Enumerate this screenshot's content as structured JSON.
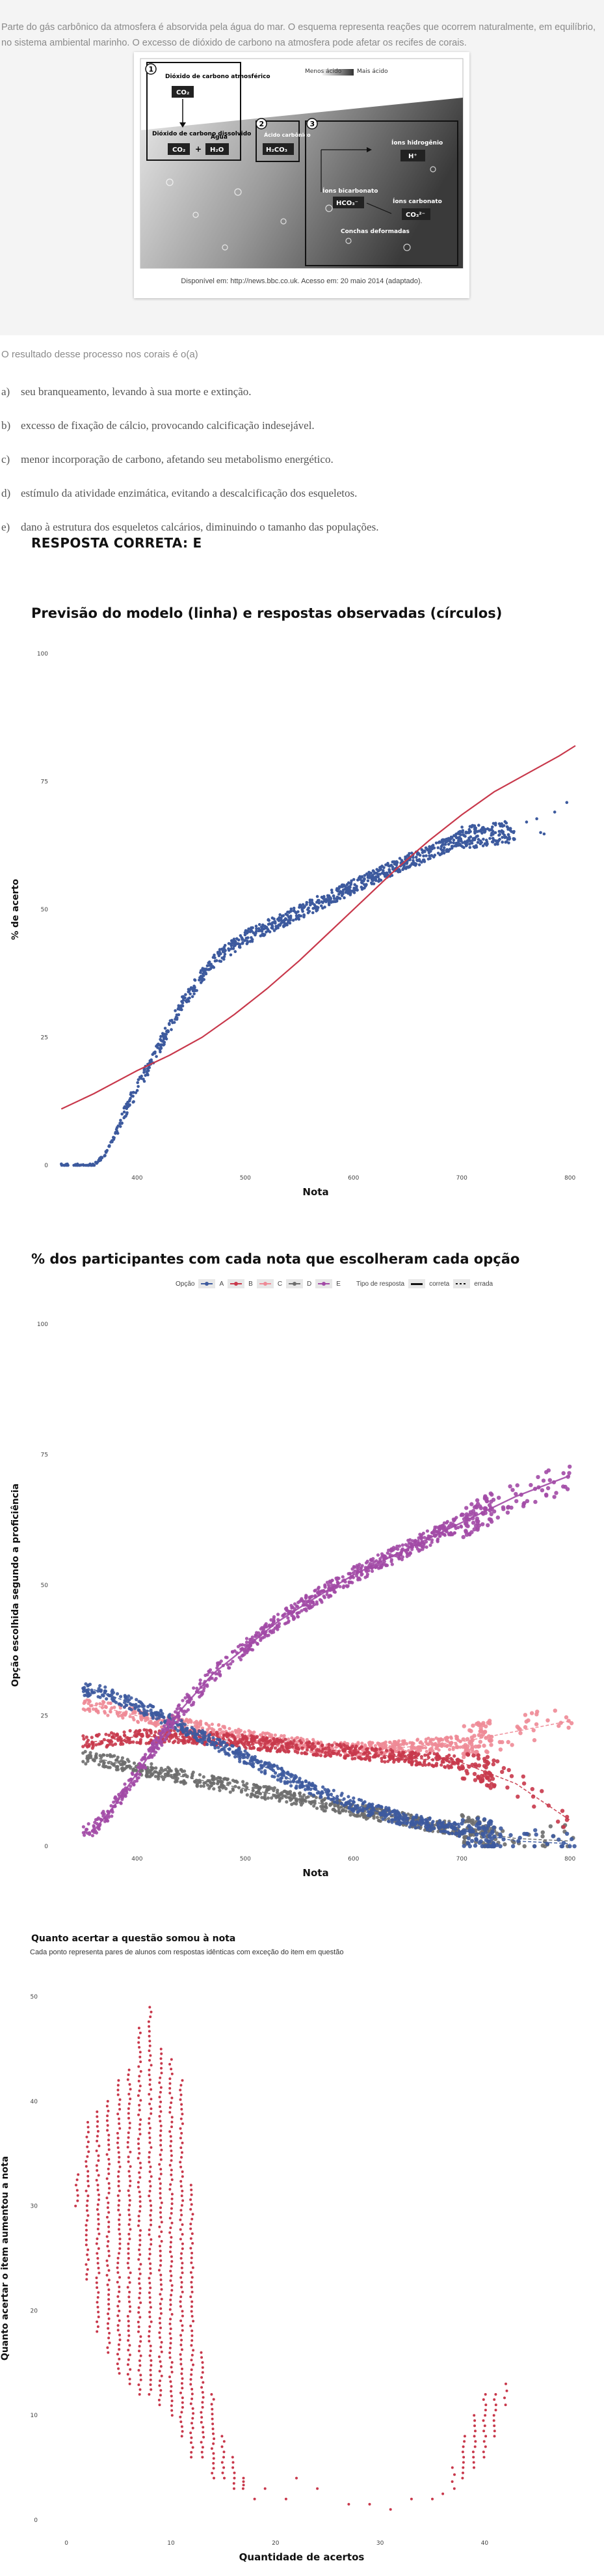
{
  "question": {
    "enunciado": "Parte do gás carbônico da atmosfera é absorvida pela água do mar. O esquema representa reações que ocorrem naturalmente, em equilíbrio, no sistema ambiental marinho. O excesso de dióxido de carbono na atmosfera pode afetar os recifes de corais.",
    "figure": {
      "step1": "1",
      "step2": "2",
      "step3": "3",
      "atm_label": "Dióxido de carbono atmosférico",
      "atm_formula": "CO₂",
      "diss_label": "Dióxido de carbono dissolvido",
      "diss_formula": "CO₂",
      "water_label": "Água",
      "water_formula": "H₂O",
      "plus": "+",
      "acid_label": "Ácido carbônico",
      "acid_formula": "H₂CO₃",
      "h_label": "Íons hidrogênio",
      "h_formula": "H⁺",
      "bicarb_label": "Íons bicarbonato",
      "bicarb_formula": "HCO₃⁻",
      "carb_label": "Íons carbonato",
      "carb_formula": "CO₃²⁻",
      "shells_label": "Conchas deformadas",
      "less_acid": "Menos ácido",
      "more_acid": "Mais ácido",
      "credit": "Disponível em: http://news.bbc.co.uk. Acesso em: 20 maio 2014 (adaptado)."
    },
    "command": "O resultado desse processo nos corais é o(a)",
    "alternatives": [
      {
        "letter": "a)",
        "text": "seu branqueamento, levando à sua morte e extinção."
      },
      {
        "letter": "b)",
        "text": "excesso de fixação de cálcio, provocando calcificação indesejável."
      },
      {
        "letter": "c)",
        "text": "menor incorporação de carbono, afetando seu metabolismo energético."
      },
      {
        "letter": "d)",
        "text": "estímulo da atividade enzimática, evitando a descalcificação dos esqueletos."
      },
      {
        "letter": "e)",
        "text": "dano à estrutura dos esqueletos calcários, diminuindo o tamanho das populações."
      }
    ],
    "answer": "RESPOSTA CORRETA: E"
  },
  "colors": {
    "blue": "#3d5a9e",
    "red": "#c8384b",
    "purple": "#a24aa6",
    "pink": "#ee8a96",
    "gray": "#6d6d6d"
  },
  "chart_data": [
    {
      "type": "scatter",
      "title": "Previsão do modelo (linha) e respostas observadas (círculos)",
      "xlabel": "Nota",
      "ylabel": "% de acerto",
      "xlim": [
        325,
        805
      ],
      "ylim": [
        0,
        100
      ],
      "x_ticks": [
        400,
        500,
        600,
        700,
        800
      ],
      "x_tick_labels": [
        "400",
        "500",
        "600",
        "700",
        "800"
      ],
      "y_ticks": [
        0,
        25,
        50,
        75,
        100
      ],
      "y_tick_labels": [
        "0",
        "25",
        "50",
        "75",
        "100"
      ],
      "observed": {
        "x": [
          330,
          360,
          370,
          380,
          390,
          400,
          410,
          420,
          430,
          440,
          450,
          460,
          470,
          480,
          490,
          500,
          510,
          520,
          530,
          540,
          550,
          560,
          570,
          580,
          590,
          600,
          610,
          620,
          630,
          640,
          650,
          660,
          670,
          680,
          690,
          700,
          720,
          740,
          760,
          780,
          800
        ],
        "y": [
          0,
          0,
          2,
          6,
          11,
          15,
          19,
          23,
          27,
          31,
          34,
          37,
          39.5,
          41.5,
          43,
          44.5,
          45.5,
          46.5,
          47.5,
          48.5,
          49.5,
          50.5,
          51.5,
          52.5,
          53.5,
          54.5,
          55.5,
          56.5,
          57.5,
          58.5,
          59.5,
          60,
          61,
          62,
          63,
          64,
          64.5,
          65,
          66,
          67,
          70
        ]
      },
      "model": {
        "x": [
          330,
          360,
          400,
          430,
          460,
          490,
          520,
          550,
          580,
          610,
          640,
          670,
          700,
          730,
          760,
          790,
          805
        ],
        "y": [
          11,
          14,
          18.5,
          21.5,
          25,
          29.5,
          34.5,
          40,
          46,
          52,
          58,
          63.5,
          68.5,
          73,
          76.5,
          80,
          82
        ]
      }
    },
    {
      "type": "scatter",
      "title": "% dos participantes com cada nota que escolheram cada opção",
      "xlabel": "Nota",
      "ylabel": "Opção escolhida segundo a proficiência",
      "xlim": [
        325,
        805
      ],
      "ylim": [
        0,
        100
      ],
      "x_ticks": [
        400,
        500,
        600,
        700,
        800
      ],
      "x_tick_labels": [
        "400",
        "500",
        "600",
        "700",
        "800"
      ],
      "y_ticks": [
        0,
        25,
        50,
        75,
        100
      ],
      "y_tick_labels": [
        "0",
        "25",
        "50",
        "75",
        "100"
      ],
      "legend": {
        "option_title": "Opção",
        "options": [
          "A",
          "B",
          "C",
          "D",
          "E"
        ],
        "type_title": "Tipo de resposta",
        "types": [
          "correta",
          "errada"
        ],
        "placement": "top-center"
      },
      "series": [
        {
          "name": "A",
          "x": [
            360,
            400,
            450,
            500,
            550,
            600,
            650,
            700,
            750,
            800
          ],
          "y": [
            30,
            27,
            22,
            17,
            12,
            8,
            5,
            3,
            1,
            0.5
          ]
        },
        {
          "name": "B",
          "x": [
            360,
            400,
            450,
            500,
            550,
            600,
            650,
            700,
            750,
            800
          ],
          "y": [
            20,
            21,
            21,
            20,
            19,
            18,
            17,
            16,
            12,
            5
          ]
        },
        {
          "name": "C",
          "x": [
            360,
            400,
            450,
            500,
            550,
            600,
            650,
            700,
            750,
            800
          ],
          "y": [
            27,
            25,
            23,
            21,
            19.5,
            18.5,
            19,
            20,
            22,
            24
          ]
        },
        {
          "name": "D",
          "x": [
            360,
            400,
            450,
            500,
            550,
            600,
            650,
            700,
            750,
            800
          ],
          "y": [
            17,
            15,
            13,
            11,
            9,
            7,
            5,
            3,
            1.5,
            1
          ]
        },
        {
          "name": "E",
          "x": [
            360,
            380,
            400,
            420,
            440,
            470,
            500,
            530,
            560,
            600,
            650,
            700,
            750,
            800
          ],
          "y": [
            3,
            8,
            14,
            20,
            26,
            33,
            38,
            43,
            47,
            52,
            57,
            62,
            67,
            71
          ]
        }
      ]
    },
    {
      "type": "scatter",
      "title": "Quanto acertar a questão somou à nota",
      "subtitle": "Cada ponto representa pares de alunos com respostas idênticas com exceção do item em questão",
      "xlabel": "Quantidade de acertos",
      "ylabel": "Quanto acertar o item aumentou a nota",
      "xlim": [
        -2,
        47
      ],
      "ylim": [
        -1,
        51
      ],
      "x_ticks": [
        0,
        10,
        20,
        30,
        40
      ],
      "x_tick_labels": [
        "0",
        "10",
        "20",
        "30",
        "40"
      ],
      "y_ticks": [
        0,
        10,
        20,
        30,
        40,
        50
      ],
      "y_tick_labels": [
        "0",
        "10",
        "20",
        "30",
        "40",
        "50"
      ],
      "columns": [
        {
          "x": 1,
          "ymin": 30,
          "ymax": 33
        },
        {
          "x": 2,
          "ymin": 23,
          "ymax": 38
        },
        {
          "x": 3,
          "ymin": 18,
          "ymax": 39
        },
        {
          "x": 4,
          "ymin": 16,
          "ymax": 40
        },
        {
          "x": 5,
          "ymin": 14,
          "ymax": 42
        },
        {
          "x": 6,
          "ymin": 13,
          "ymax": 43
        },
        {
          "x": 7,
          "ymin": 12,
          "ymax": 47
        },
        {
          "x": 8,
          "ymin": 12,
          "ymax": 49
        },
        {
          "x": 9,
          "ymin": 11,
          "ymax": 45
        },
        {
          "x": 10,
          "ymin": 10,
          "ymax": 44
        },
        {
          "x": 11,
          "ymin": 8,
          "ymax": 42
        },
        {
          "x": 12,
          "ymin": 6,
          "ymax": 32
        },
        {
          "x": 13,
          "ymin": 6,
          "ymax": 16
        },
        {
          "x": 14,
          "ymin": 4,
          "ymax": 12
        },
        {
          "x": 15,
          "ymin": 4,
          "ymax": 8
        },
        {
          "x": 16,
          "ymin": 3,
          "ymax": 6
        },
        {
          "x": 17,
          "ymin": 3,
          "ymax": 4
        },
        {
          "x": 37,
          "ymin": 3,
          "ymax": 5
        },
        {
          "x": 38,
          "ymin": 4,
          "ymax": 8
        },
        {
          "x": 39,
          "ymin": 5,
          "ymax": 10
        },
        {
          "x": 40,
          "ymin": 6,
          "ymax": 12
        },
        {
          "x": 41,
          "ymin": 8,
          "ymax": 12
        },
        {
          "x": 42,
          "ymin": 11,
          "ymax": 13
        }
      ],
      "points": {
        "x": [
          18,
          19,
          21,
          22,
          24,
          27,
          29,
          31,
          33,
          35,
          36
        ],
        "y": [
          2,
          3,
          2,
          4,
          3,
          1.5,
          1.5,
          1,
          2,
          2,
          2.5
        ]
      }
    }
  ]
}
